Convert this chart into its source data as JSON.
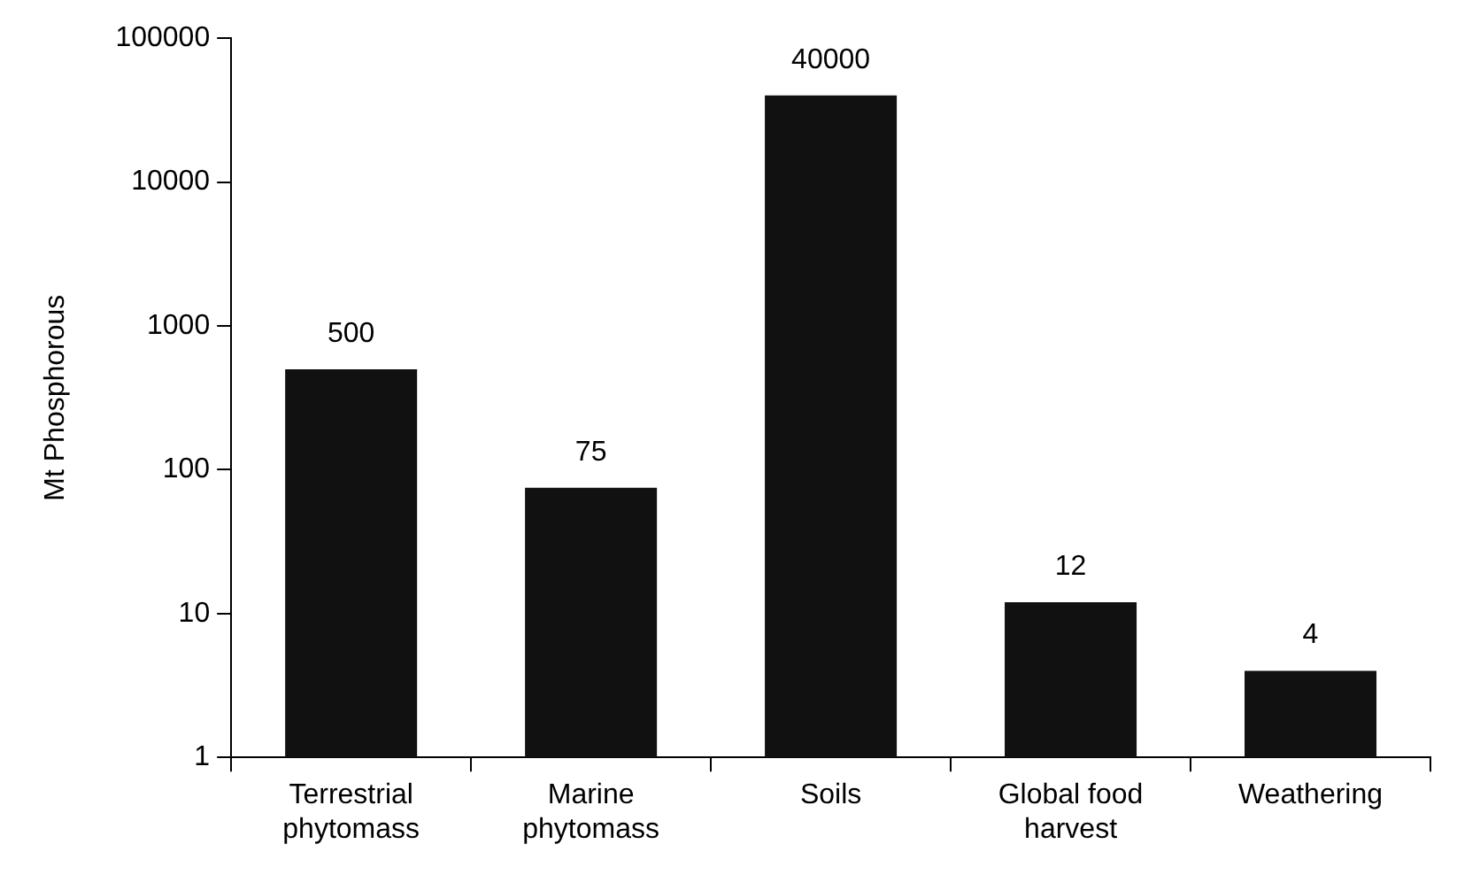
{
  "chart_data": {
    "type": "bar",
    "ylabel": "Mt Phosphorous",
    "categories": [
      "Terrestrial phytomass",
      "Marine phytomass",
      "Soils",
      "Global food harvest",
      "Weathering"
    ],
    "values": [
      500,
      75,
      40000,
      12,
      4
    ],
    "color": "#111111",
    "log": true,
    "ylim": [
      1,
      100000
    ],
    "yticks": [
      1,
      10,
      100,
      1000,
      10000,
      100000
    ],
    "data_labels": true,
    "grid": false,
    "legend": false
  }
}
